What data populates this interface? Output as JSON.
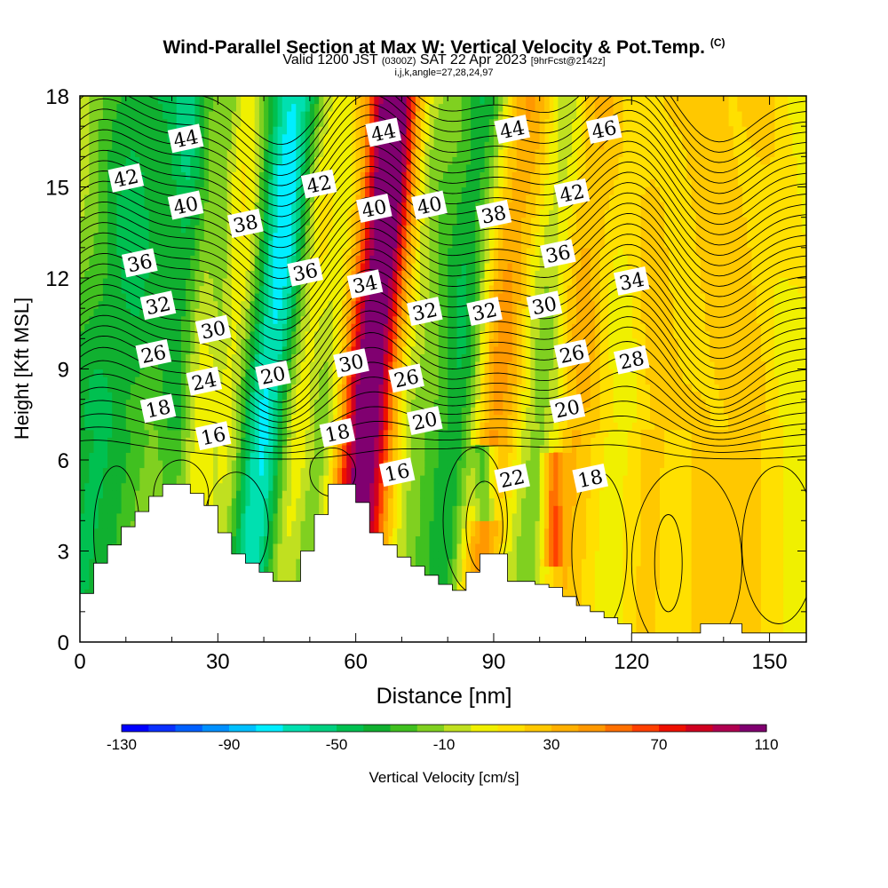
{
  "header": {
    "title": "Wind-Parallel Section at Max W: Vertical Velocity & Pot.Temp.",
    "copyright": "(C)",
    "subtitle_pre": "Valid 1200 JST",
    "subtitle_zulu": "(0300Z)",
    "subtitle_date": "SAT 22 Apr 2023",
    "subtitle_fcst": "[9hrFcst@2142z]",
    "subtitle2": "i,j,k,angle=27,28,24,97"
  },
  "chart_data": {
    "type": "heatmap",
    "xlabel": "Distance [nm]",
    "ylabel": "Height [Kft MSL]",
    "xlim": [
      0,
      158
    ],
    "ylim": [
      0,
      18
    ],
    "xticks": [
      0,
      30,
      60,
      90,
      120,
      150
    ],
    "yticks": [
      0,
      3,
      6,
      9,
      12,
      15,
      18
    ],
    "terrain": {
      "x": [
        0,
        3,
        6,
        9,
        12,
        15,
        18,
        21,
        24,
        27,
        30,
        33,
        36,
        39,
        42,
        45,
        48,
        51,
        54,
        57,
        60,
        63,
        66,
        69,
        72,
        75,
        78,
        81,
        84,
        87,
        90,
        93,
        96,
        99,
        102,
        105,
        108,
        111,
        114,
        117,
        120,
        123,
        126,
        129,
        132,
        135,
        138,
        141,
        144,
        147,
        150,
        153,
        156,
        158
      ],
      "height": [
        1.6,
        2.6,
        3.2,
        3.8,
        4.3,
        4.8,
        5.2,
        5.2,
        4.9,
        4.5,
        3.6,
        2.9,
        2.6,
        2.3,
        2.0,
        2.0,
        3.0,
        4.2,
        5.2,
        5.2,
        4.6,
        3.6,
        3.2,
        2.8,
        2.5,
        2.2,
        1.9,
        1.7,
        2.3,
        2.9,
        2.9,
        2.0,
        2.0,
        1.9,
        1.8,
        1.5,
        1.2,
        1.0,
        0.8,
        0.6,
        0.3,
        0.3,
        0.3,
        0.3,
        0.3,
        0.6,
        0.6,
        0.6,
        0.3,
        0.3,
        0.3,
        0.3,
        0.3,
        0.3
      ]
    },
    "contour_labels": [
      {
        "text": "44",
        "x": 23,
        "y": 16.6
      },
      {
        "text": "42",
        "x": 10,
        "y": 15.3
      },
      {
        "text": "40",
        "x": 23,
        "y": 14.4
      },
      {
        "text": "38",
        "x": 36,
        "y": 13.8
      },
      {
        "text": "36",
        "x": 13,
        "y": 12.5
      },
      {
        "text": "32",
        "x": 17,
        "y": 11.1
      },
      {
        "text": "30",
        "x": 29,
        "y": 10.3
      },
      {
        "text": "26",
        "x": 16,
        "y": 9.5
      },
      {
        "text": "24",
        "x": 27,
        "y": 8.6
      },
      {
        "text": "20",
        "x": 42,
        "y": 8.8
      },
      {
        "text": "18",
        "x": 17,
        "y": 7.7
      },
      {
        "text": "16",
        "x": 29,
        "y": 6.8
      },
      {
        "text": "42",
        "x": 52,
        "y": 15.1
      },
      {
        "text": "36",
        "x": 49,
        "y": 12.2
      },
      {
        "text": "44",
        "x": 66,
        "y": 16.8
      },
      {
        "text": "40",
        "x": 64,
        "y": 14.3
      },
      {
        "text": "34",
        "x": 62,
        "y": 11.8
      },
      {
        "text": "30",
        "x": 59,
        "y": 9.2
      },
      {
        "text": "26",
        "x": 71,
        "y": 8.7
      },
      {
        "text": "18",
        "x": 56,
        "y": 6.9
      },
      {
        "text": "16",
        "x": 69,
        "y": 5.6
      },
      {
        "text": "40",
        "x": 76,
        "y": 14.4
      },
      {
        "text": "32",
        "x": 75,
        "y": 10.9
      },
      {
        "text": "20",
        "x": 75,
        "y": 7.3
      },
      {
        "text": "44",
        "x": 94,
        "y": 16.9
      },
      {
        "text": "38",
        "x": 90,
        "y": 14.1
      },
      {
        "text": "32",
        "x": 88,
        "y": 10.9
      },
      {
        "text": "22",
        "x": 94,
        "y": 5.4
      },
      {
        "text": "46",
        "x": 114,
        "y": 16.9
      },
      {
        "text": "42",
        "x": 107,
        "y": 14.8
      },
      {
        "text": "36",
        "x": 104,
        "y": 12.8
      },
      {
        "text": "30",
        "x": 101,
        "y": 11.1
      },
      {
        "text": "26",
        "x": 107,
        "y": 9.5
      },
      {
        "text": "20",
        "x": 106,
        "y": 7.7
      },
      {
        "text": "34",
        "x": 120,
        "y": 11.9
      },
      {
        "text": "28",
        "x": 120,
        "y": 9.3
      },
      {
        "text": "18",
        "x": 111,
        "y": 5.4
      }
    ],
    "colorbar": {
      "label": "Vertical Velocity [cm/s]",
      "min": -130,
      "max": 110,
      "step": 10,
      "tick_labels": [
        -130,
        -90,
        -50,
        -10,
        30,
        70,
        110
      ],
      "colors": [
        "#0000ff",
        "#0a30ff",
        "#0060ff",
        "#0090ff",
        "#00c0ff",
        "#00eeff",
        "#00e0b0",
        "#00d080",
        "#00c050",
        "#10b030",
        "#40c020",
        "#80d020",
        "#c0e020",
        "#f0f000",
        "#ffe000",
        "#ffc800",
        "#ffb000",
        "#ff9800",
        "#ff7000",
        "#ff4000",
        "#ee1000",
        "#d00020",
        "#b00050",
        "#800070"
      ]
    }
  }
}
